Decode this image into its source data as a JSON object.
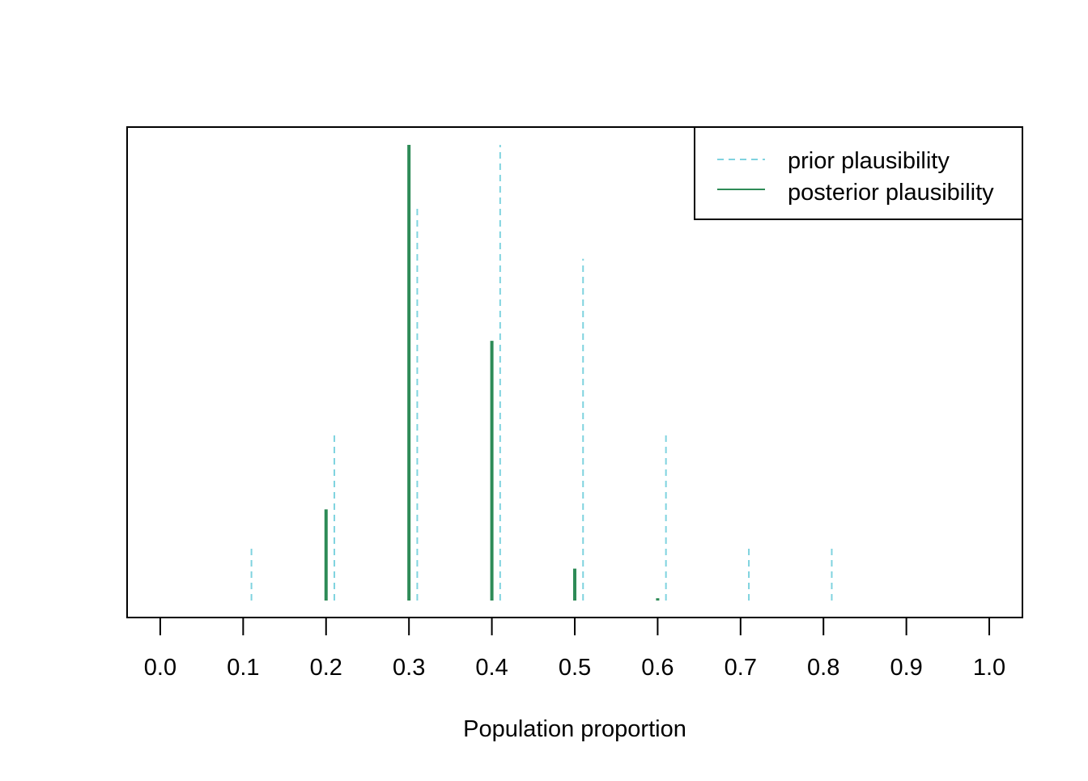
{
  "chart_data": {
    "type": "bar",
    "xlabel": "Population proportion",
    "ylabel": "",
    "xlim": [
      -0.04,
      1.04
    ],
    "ylim": [
      0,
      1.03
    ],
    "x_ticks": [
      "0.0",
      "0.1",
      "0.2",
      "0.3",
      "0.4",
      "0.5",
      "0.6",
      "0.7",
      "0.8",
      "0.9",
      "1.0"
    ],
    "y_axis_shown": false,
    "legend_position": "top-right",
    "series": [
      {
        "name": "prior plausibility",
        "style": "dashed",
        "color": "#7FD3DF",
        "x": [
          0.1,
          0.2,
          0.3,
          0.4,
          0.5,
          0.6,
          0.7,
          0.8
        ],
        "values": [
          0.12,
          0.37,
          0.87,
          1.0,
          0.75,
          0.37,
          0.12,
          0.12
        ]
      },
      {
        "name": "posterior plausibility",
        "style": "solid",
        "color": "#2E8B57",
        "x": [
          0.2,
          0.3,
          0.4,
          0.5,
          0.6
        ],
        "values": [
          0.2,
          1.0,
          0.57,
          0.07,
          0.005
        ]
      }
    ]
  }
}
